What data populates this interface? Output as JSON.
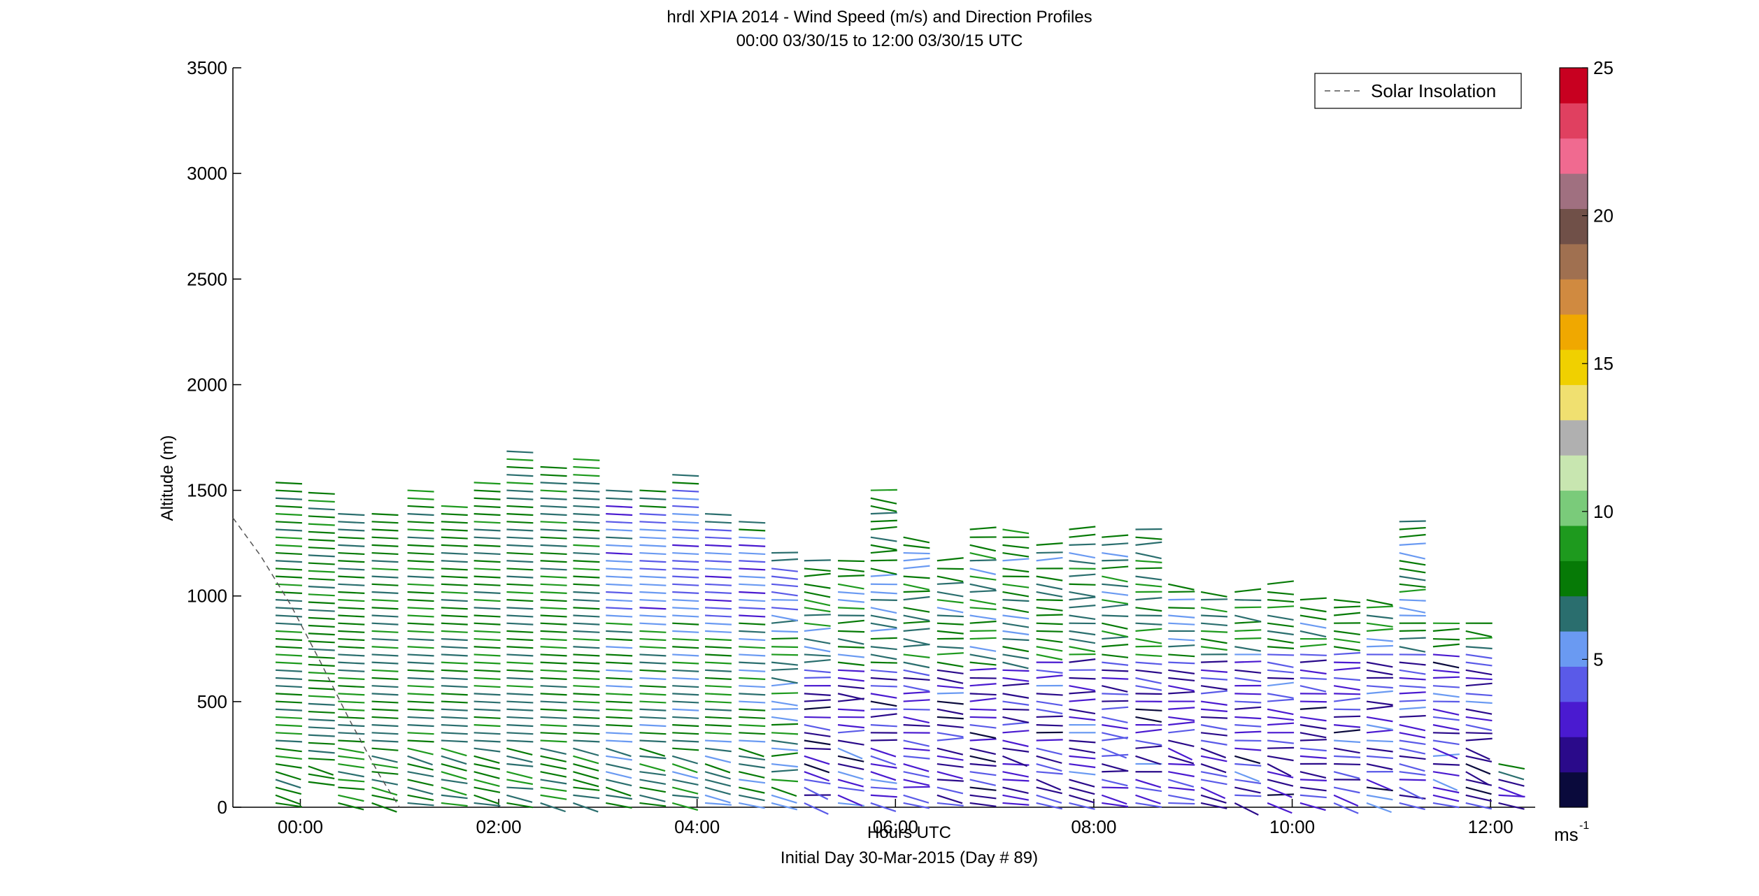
{
  "chart_data": {
    "type": "wind-barb-profile",
    "title": "hrdl XPIA 2014 - Wind Speed (m/s) and Direction Profiles",
    "subtitle": "00:00 03/30/15 to 12:00 03/30/15  UTC",
    "xlabel": "Hours UTC",
    "ylabel": "Altitude (m)",
    "footer": "Initial Day 30-Mar-2015 (Day # 89)",
    "x_ticks": [
      "00:00",
      "02:00",
      "04:00",
      "06:00",
      "08:00",
      "10:00",
      "12:00"
    ],
    "x_tick_hours": [
      0,
      2,
      4,
      6,
      8,
      10,
      12
    ],
    "xlim": [
      -0.68,
      12.45
    ],
    "y_ticks": [
      0,
      500,
      1000,
      1500,
      2000,
      2500,
      3000,
      3500
    ],
    "ylim": [
      0,
      3500
    ],
    "legend": {
      "entries": [
        "Solar Insolation"
      ],
      "placement": "top-right"
    },
    "colorbar": {
      "ticks": [
        5,
        10,
        15,
        20,
        25
      ],
      "min": 0,
      "max": 25,
      "unit_label": "ms",
      "unit_exponent": "-1",
      "colors": [
        "#0a0a3c",
        "#2a0a8a",
        "#4a1ad0",
        "#5a5ae8",
        "#6a9af2",
        "#2a6e6e",
        "#067a06",
        "#1e9a1e",
        "#7acb7a",
        "#c8e6b0",
        "#b0b0b0",
        "#f0e070",
        "#f0d000",
        "#f0a800",
        "#d08a40",
        "#a07050",
        "#705048",
        "#a07080",
        "#f06a90",
        "#e04060",
        "#c80020"
      ]
    },
    "solar_insolation": {
      "hours": [
        -0.68,
        -0.4,
        -0.1,
        0.2,
        0.5,
        0.8,
        1.0
      ],
      "altitude_m": [
        1370,
        1190,
        960,
        690,
        410,
        150,
        0
      ]
    },
    "profiles": {
      "hours": [
        -0.25,
        0.08,
        0.38,
        0.72,
        1.08,
        1.42,
        1.75,
        2.08,
        2.42,
        2.75,
        3.08,
        3.42,
        3.75,
        4.08,
        4.42,
        4.75,
        5.08,
        5.42,
        5.75,
        6.08,
        6.42,
        6.75,
        7.08,
        7.42,
        7.75,
        8.08,
        8.42,
        8.75,
        9.08,
        9.42,
        9.75,
        10.08,
        10.42,
        10.75,
        11.08,
        11.42,
        11.75,
        12.08
      ],
      "top_altitude_m": [
        1570,
        1500,
        1400,
        1400,
        1500,
        1460,
        1540,
        1720,
        1620,
        1650,
        1520,
        1500,
        1580,
        1420,
        1380,
        1220,
        1200,
        1180,
        1500,
        1300,
        1190,
        1350,
        1320,
        1260,
        1350,
        1290,
        1350,
        1090,
        1040,
        1020,
        1080,
        1000,
        990,
        1000,
        1380,
        880,
        880,
        240
      ],
      "bottom_altitude_m": [
        0,
        100,
        0,
        0,
        0,
        0,
        0,
        0,
        0,
        0,
        0,
        0,
        0,
        0,
        0,
        0,
        0,
        0,
        0,
        0,
        0,
        0,
        0,
        0,
        0,
        0,
        0,
        0,
        0,
        0,
        0,
        0,
        0,
        0,
        0,
        0,
        0,
        0
      ]
    }
  }
}
